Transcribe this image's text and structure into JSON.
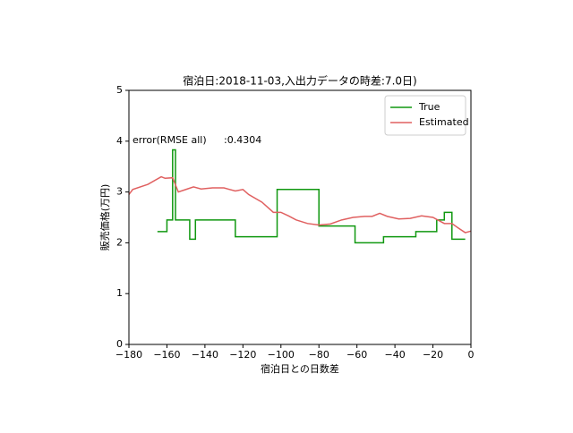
{
  "chart_data": {
    "type": "line",
    "title": "宿泊日:2018-11-03,入出力データの時差:7.0日)",
    "xlabel": "宿泊日との日数差",
    "ylabel": "販売価格(万円)",
    "annotations": [
      "error(RMSE all)",
      ":0.4304"
    ],
    "legend": "upper right",
    "xlim": [
      -180,
      0
    ],
    "ylim": [
      0,
      5
    ],
    "xticks": [
      {
        "value": -180,
        "label": "−180"
      },
      {
        "value": -160,
        "label": "−160"
      },
      {
        "value": -140,
        "label": "−140"
      },
      {
        "value": -120,
        "label": "−120"
      },
      {
        "value": -100,
        "label": "−100"
      },
      {
        "value": -80,
        "label": "−80"
      },
      {
        "value": -60,
        "label": "−60"
      },
      {
        "value": -40,
        "label": "−40"
      },
      {
        "value": -20,
        "label": "−20"
      },
      0
    ],
    "yticks": [
      0,
      1,
      2,
      3,
      4,
      5
    ],
    "series": [
      {
        "name": "True",
        "color": "#109810",
        "x": [
          -165,
          -160,
          -160,
          -157,
          -157,
          -155.5,
          -155.5,
          -148,
          -148,
          -145,
          -145,
          -124,
          -124,
          -102,
          -102,
          -80,
          -80,
          -61,
          -61,
          -46,
          -46,
          -29,
          -29,
          -18,
          -18,
          -14,
          -14,
          -10,
          -10,
          -3
        ],
        "values": [
          2.22,
          2.22,
          2.45,
          2.45,
          3.83,
          3.83,
          2.45,
          2.45,
          2.07,
          2.07,
          2.45,
          2.45,
          2.12,
          2.12,
          3.05,
          3.05,
          2.33,
          2.33,
          2.0,
          2.0,
          2.12,
          2.12,
          2.22,
          2.22,
          2.45,
          2.45,
          2.6,
          2.6,
          2.07,
          2.07
        ]
      },
      {
        "name": "Estimated",
        "color": "#e06060",
        "x": [
          -180,
          -178,
          -170,
          -163,
          -161,
          -157,
          -154,
          -150,
          -146,
          -142,
          -136,
          -130,
          -124,
          -120,
          -117,
          -110,
          -104,
          -100,
          -96,
          -92,
          -86,
          -80,
          -74,
          -68,
          -62,
          -56,
          -52,
          -48,
          -44,
          -38,
          -32,
          -26,
          -20,
          -14,
          -10,
          -7,
          -3,
          0
        ],
        "values": [
          2.95,
          3.05,
          3.15,
          3.3,
          3.27,
          3.28,
          3.0,
          3.05,
          3.1,
          3.06,
          3.08,
          3.08,
          3.02,
          3.05,
          2.95,
          2.8,
          2.6,
          2.6,
          2.53,
          2.45,
          2.38,
          2.35,
          2.37,
          2.45,
          2.5,
          2.52,
          2.52,
          2.58,
          2.52,
          2.47,
          2.48,
          2.53,
          2.5,
          2.38,
          2.38,
          2.3,
          2.2,
          2.23
        ]
      }
    ]
  }
}
